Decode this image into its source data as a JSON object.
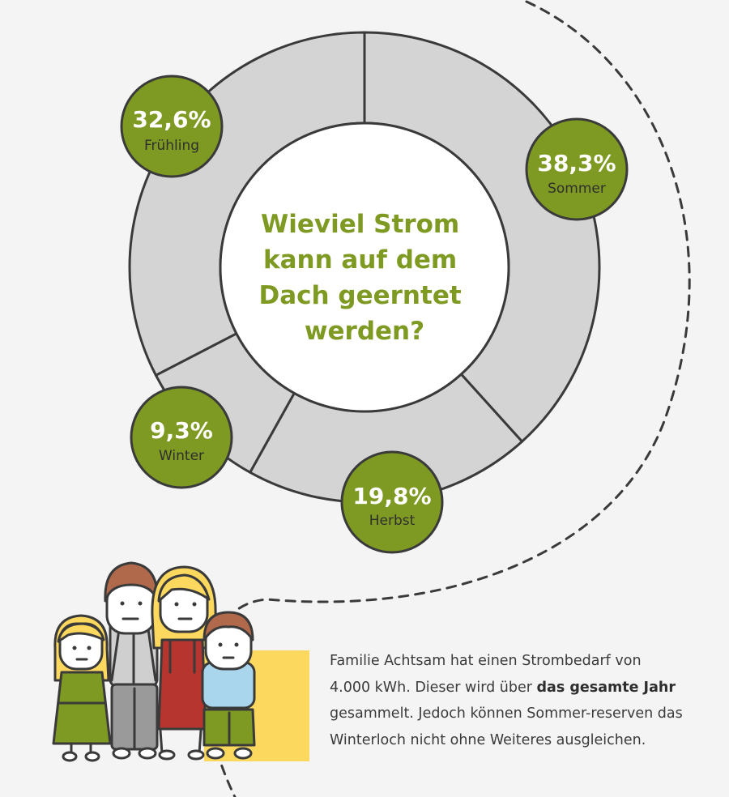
{
  "colors": {
    "background": "#f4f4f4",
    "ring": "#d4d4d4",
    "stroke": "#3a3a3a",
    "accent_green": "#7e9a22",
    "badge_text": "#ffffff",
    "label_text": "#2f2f2f",
    "highlight_yellow": "#fcd95e"
  },
  "chart_data": {
    "type": "pie",
    "title": "Wieviel Strom kann auf dem Dach geerntet werden?",
    "title_lines": [
      "Wieviel Strom",
      "kann auf dem",
      "Dach geerntet",
      "werden?"
    ],
    "slices": [
      {
        "label": "Sommer",
        "value": 38.3,
        "value_text": "38,3%"
      },
      {
        "label": "Herbst",
        "value": 19.8,
        "value_text": "19,8%"
      },
      {
        "label": "Winter",
        "value": 9.3,
        "value_text": "9,3%"
      },
      {
        "label": "Frühling",
        "value": 32.6,
        "value_text": "32,6%"
      }
    ]
  },
  "description": {
    "part1": "Familie Achtsam hat einen Strombedarf von 4.000 kWh. Dieser wird über ",
    "bold": "das gesamte Jahr",
    "part2": " gesammelt. Jedoch können Sommer-reserven das Winterloch nicht ohne Weiteres ausgleichen."
  },
  "illustration": {
    "name": "family-illustration",
    "members": [
      "girl",
      "father",
      "mother",
      "boy"
    ]
  }
}
